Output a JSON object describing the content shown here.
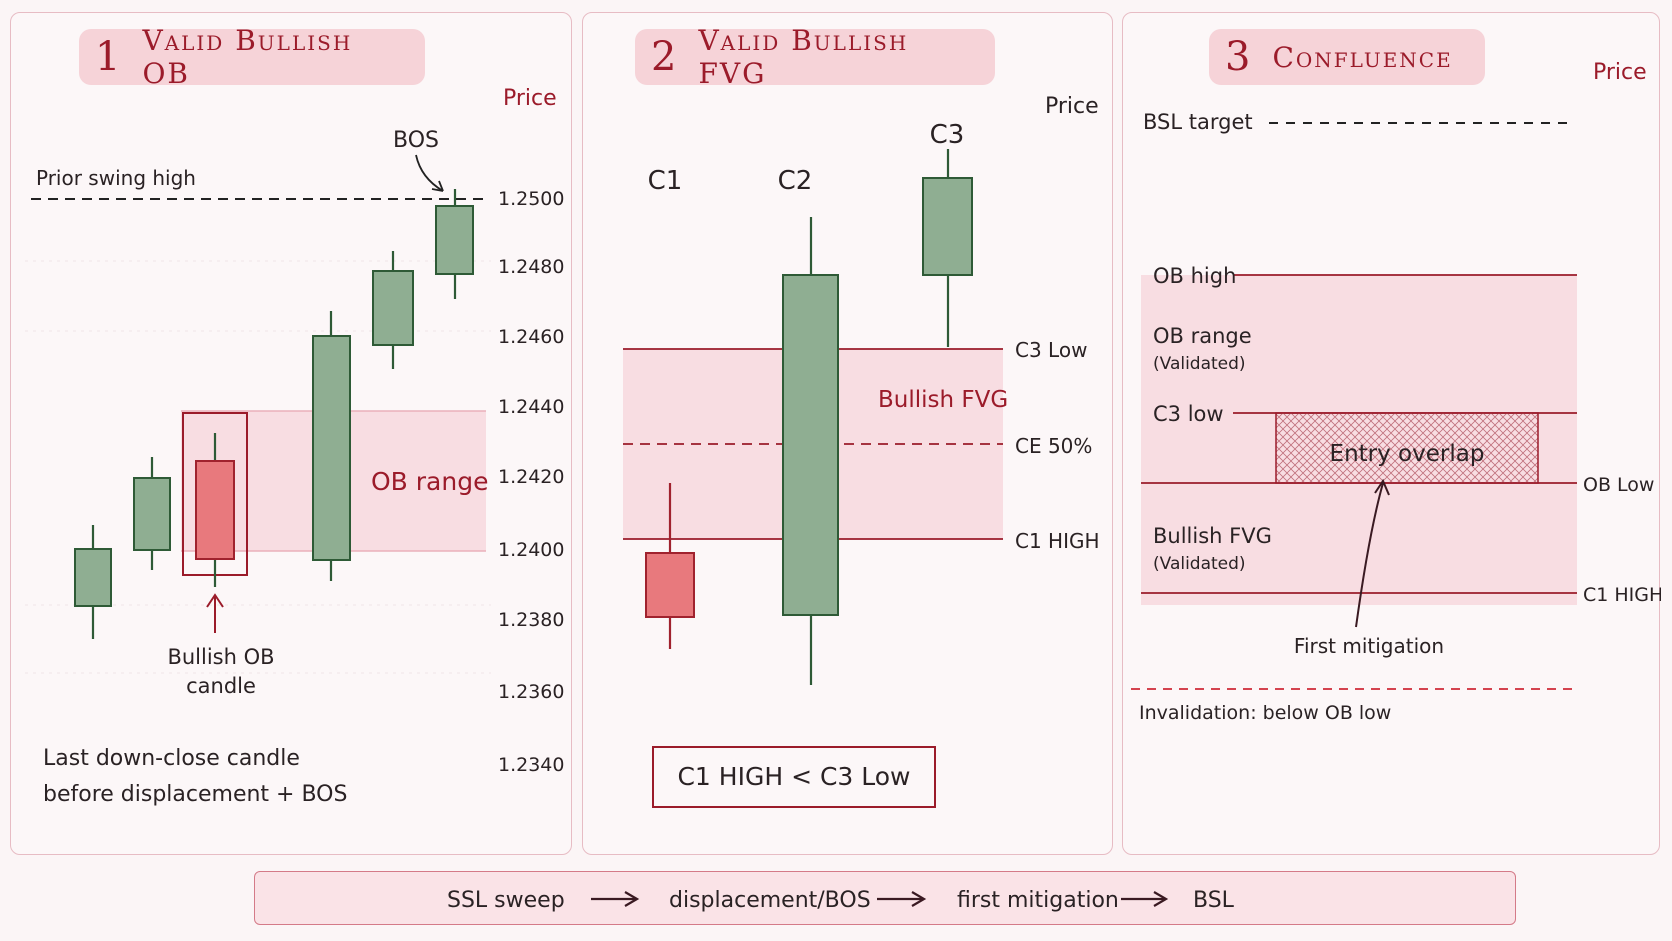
{
  "panel1": {
    "number": "1",
    "title": "Valid Bullish OB",
    "axis_title": "Price",
    "price_ticks": [
      "1.2500",
      "1.2480",
      "1.2460",
      "1.2440",
      "1.2420",
      "1.2400",
      "1.2380",
      "1.2360",
      "1.2340"
    ],
    "prior_swing_high_label": "Prior swing high",
    "bos_label": "BOS",
    "ob_range_label": "OB range",
    "ob_candle_label_line1": "Bullish OB",
    "ob_candle_label_line2": "candle",
    "note_line1": "Last down-close candle",
    "note_line2": "before displacement + BOS"
  },
  "panel2": {
    "number": "2",
    "title": "Valid Bullish FVG",
    "axis_title": "Price",
    "c1_label": "C1",
    "c2_label": "C2",
    "c3_label": "C3",
    "c3_low_label": "C3 Low",
    "fvg_label": "Bullish FVG",
    "ce_label": "CE 50%",
    "c1_high_label": "C1 HIGH",
    "rule_text": "C1 HIGH < C3 Low"
  },
  "panel3": {
    "number": "3",
    "title": "Confluence",
    "axis_title": "Price",
    "bsl_label": "BSL target",
    "ob_high_label": "OB high",
    "ob_range_label": "OB range",
    "ob_range_sub": "(Validated)",
    "c3_low_label": "C3 low",
    "entry_label": "Entry overlap",
    "ob_low_label": "OB Low",
    "fvg_label": "Bullish FVG",
    "fvg_sub": "(Validated)",
    "c1_high_label": "C1 HIGH",
    "mitigation_label": "First mitigation",
    "invalidation_label": "Invalidation: below OB low"
  },
  "flow": {
    "step1": "SSL sweep",
    "step2": "displacement/BOS",
    "step3": "first mitigation",
    "step4": "BSL"
  },
  "colors": {
    "bull_fill": "#8fae92",
    "bull_stroke": "#2e5a36",
    "bear_fill": "#e8797d",
    "bear_stroke": "#a0222e",
    "zone_fill": "#f8dde2",
    "accent_red": "#9b1b2a"
  },
  "chart_data": {
    "type": "candlestick",
    "candles_panel1": [
      {
        "open": 1.2383,
        "high": 1.239,
        "low": 1.2377,
        "close": 1.2397,
        "direction": "up"
      },
      {
        "open": 1.2406,
        "high": 1.2412,
        "low": 1.2401,
        "close": 1.2426,
        "direction": "up"
      },
      {
        "open": 1.2428,
        "high": 1.2434,
        "low": 1.2393,
        "close": 1.2401,
        "direction": "down"
      },
      {
        "open": 1.2401,
        "high": 1.247,
        "low": 1.2394,
        "close": 1.2463,
        "direction": "up"
      },
      {
        "open": 1.2459,
        "high": 1.2485,
        "low": 1.2452,
        "close": 1.248,
        "direction": "up"
      },
      {
        "open": 1.248,
        "high": 1.2505,
        "low": 1.2473,
        "close": 1.2499,
        "direction": "up"
      }
    ],
    "prior_swing_high": 1.25,
    "ob_range": [
      1.2401,
      1.2441
    ],
    "ylim": [
      1.234,
      1.25
    ]
  }
}
